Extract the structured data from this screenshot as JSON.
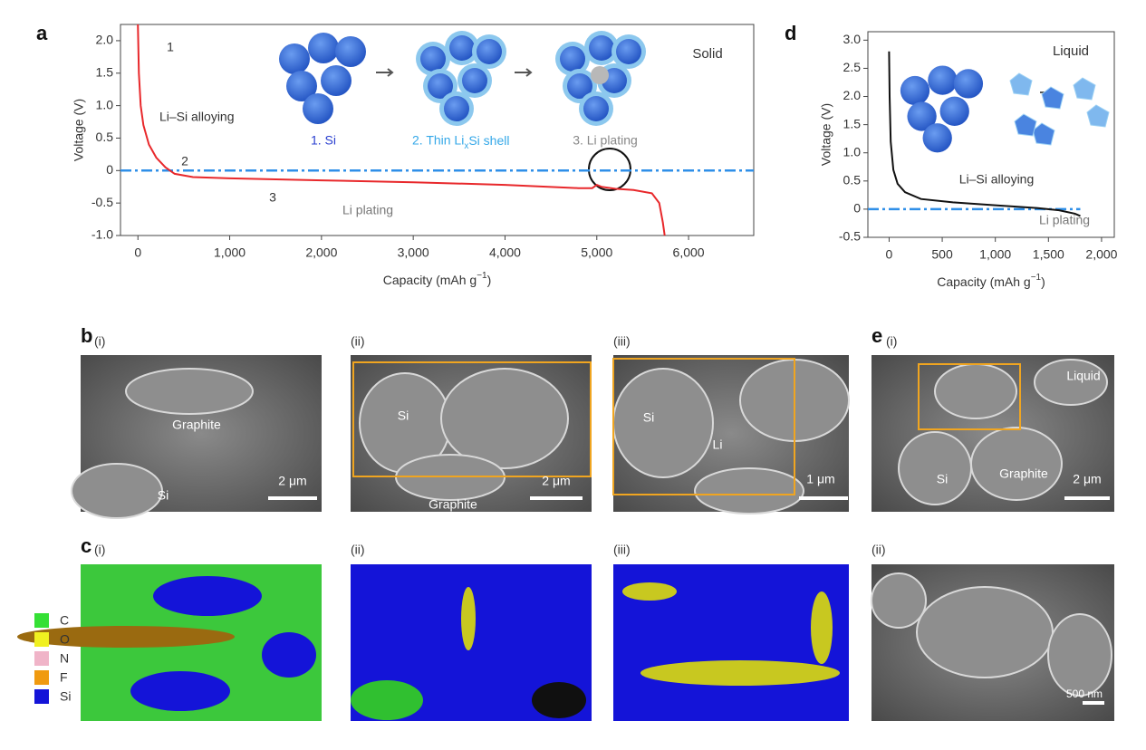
{
  "chart_data": [
    {
      "type": "line",
      "panel": "a",
      "ylabel": "Voltage (V)",
      "xlabel": [
        "Capacity (mAh g",
        "−1",
        ")"
      ],
      "xlim": [
        -190,
        6710
      ],
      "ylim": [
        -1,
        2.25
      ],
      "xticks": [
        0,
        {
          "value": 1000,
          "label": "1,000"
        },
        {
          "value": 2000,
          "label": "2,000"
        },
        {
          "value": 3000,
          "label": "3,000"
        },
        {
          "value": 4000,
          "label": "4,000"
        },
        {
          "value": 5000,
          "label": "5,000"
        },
        {
          "value": 6000,
          "label": "6,000"
        }
      ],
      "yticks": [
        {
          "value": -1,
          "label": "-1.0"
        },
        -0.5,
        0,
        0.5,
        {
          "value": 1,
          "label": "1.0"
        },
        1.5,
        {
          "value": 2,
          "label": "2.0"
        }
      ],
      "hline": {
        "value": 0,
        "color": "#2f8fe8"
      },
      "series": [
        {
          "color": "#e8282b",
          "x": [
            0,
            10,
            30,
            60,
            120,
            200,
            300,
            400,
            600,
            1000,
            2000,
            3000,
            4000,
            4800,
            4950,
            5000,
            5050,
            5200,
            5400,
            5600,
            5680,
            5720,
            5740
          ],
          "values": [
            2.25,
            1.5,
            1.0,
            0.7,
            0.4,
            0.2,
            0.05,
            -0.05,
            -0.1,
            -0.12,
            -0.15,
            -0.18,
            -0.22,
            -0.27,
            -0.27,
            -0.22,
            -0.25,
            -0.28,
            -0.3,
            -0.35,
            -0.5,
            -0.8,
            -1.0
          ]
        }
      ],
      "annotations": [
        "1",
        "Li–Si alloying",
        "2",
        "3",
        "Li plating",
        "Solid",
        "1. Si",
        "2. Thin Li",
        "x",
        "Si shell",
        "3. Li plating"
      ]
    },
    {
      "type": "line",
      "panel": "d",
      "ylabel": "Voltage (V)",
      "xlabel": [
        "Capacity (mAh g",
        "−1",
        ")"
      ],
      "xlim": [
        -200,
        2120
      ],
      "ylim": [
        -0.5,
        3.15
      ],
      "xticks": [
        0,
        500,
        {
          "value": 1000,
          "label": "1,000"
        },
        {
          "value": 1500,
          "label": "1,500"
        },
        {
          "value": 2000,
          "label": "2,000"
        }
      ],
      "yticks": [
        -0.5,
        0,
        0.5,
        {
          "value": 1,
          "label": "1.0"
        },
        1.5,
        {
          "value": 2,
          "label": "2.0"
        },
        2.5,
        {
          "value": 3,
          "label": "3.0"
        }
      ],
      "hline": {
        "value": 0,
        "color": "#2f8fe8"
      },
      "series": [
        {
          "color": "#111111",
          "x": [
            0,
            5,
            15,
            40,
            80,
            150,
            300,
            600,
            1000,
            1400,
            1600,
            1750,
            1800
          ],
          "values": [
            2.8,
            2.0,
            1.2,
            0.7,
            0.45,
            0.3,
            0.18,
            0.12,
            0.07,
            0.02,
            -0.02,
            -0.08,
            -0.12
          ]
        }
      ],
      "annotations": [
        "Liquid",
        "Li–Si alloying",
        "Li plating"
      ]
    }
  ],
  "images": {
    "b": {
      "label": "b",
      "tags": [
        "(i)",
        "(ii)",
        "(iii)"
      ],
      "texts": [
        [
          "Graphite",
          "Si",
          "2 μm"
        ],
        [
          "Si",
          "Graphite",
          "2 μm"
        ],
        [
          "Si",
          "Li",
          "1 μm"
        ]
      ]
    },
    "e": {
      "label": "e",
      "tags": [
        "(i)",
        "(ii)"
      ],
      "texts": [
        [
          "Liquid",
          "Si",
          "Graphite",
          "2 μm"
        ],
        [
          "500 nm"
        ]
      ]
    },
    "c": {
      "label": "c",
      "tags": [
        "(i)",
        "(ii)",
        "(iii)"
      ]
    },
    "legend": [
      "C",
      "O",
      "N",
      "F",
      "Si"
    ]
  }
}
